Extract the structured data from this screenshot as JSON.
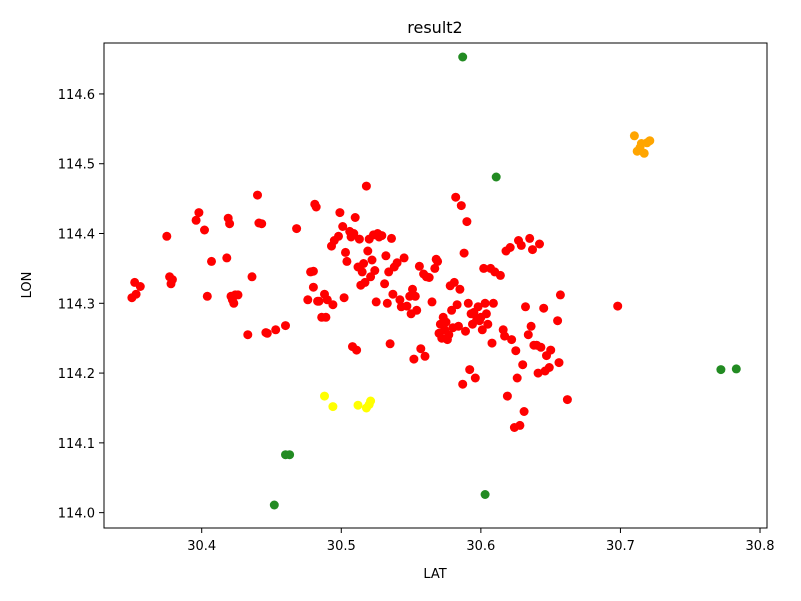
{
  "chart_data": {
    "type": "scatter",
    "title": "result2",
    "xlabel": "LAT",
    "ylabel": "LON",
    "xlim": [
      30.33,
      30.805
    ],
    "ylim": [
      113.978,
      114.673
    ],
    "x_ticks": [
      30.4,
      30.5,
      30.6,
      30.7,
      30.8
    ],
    "x_tick_labels": [
      "30.4",
      "30.5",
      "30.6",
      "30.7",
      "30.8"
    ],
    "y_ticks": [
      114.0,
      114.1,
      114.2,
      114.3,
      114.4,
      114.5,
      114.6
    ],
    "y_tick_labels": [
      "114.0",
      "114.1",
      "114.2",
      "114.3",
      "114.4",
      "114.5",
      "114.6"
    ],
    "grid": false,
    "legend": "none",
    "series": [
      {
        "color": "#ff0000",
        "points": [
          [
            30.35,
            114.308
          ],
          [
            30.353,
            114.313
          ],
          [
            30.352,
            114.33
          ],
          [
            30.356,
            114.324
          ],
          [
            30.375,
            114.396
          ],
          [
            30.377,
            114.338
          ],
          [
            30.379,
            114.334
          ],
          [
            30.378,
            114.328
          ],
          [
            30.396,
            114.419
          ],
          [
            30.398,
            114.43
          ],
          [
            30.402,
            114.405
          ],
          [
            30.404,
            114.31
          ],
          [
            30.407,
            114.36
          ],
          [
            30.418,
            114.365
          ],
          [
            30.419,
            114.422
          ],
          [
            30.42,
            114.414
          ],
          [
            30.421,
            114.31
          ],
          [
            30.422,
            114.305
          ],
          [
            30.424,
            114.312
          ],
          [
            30.423,
            114.3
          ],
          [
            30.426,
            114.312
          ],
          [
            30.433,
            114.255
          ],
          [
            30.436,
            114.338
          ],
          [
            30.44,
            114.455
          ],
          [
            30.441,
            114.415
          ],
          [
            30.443,
            114.414
          ],
          [
            30.446,
            114.258
          ],
          [
            30.447,
            114.257
          ],
          [
            30.453,
            114.262
          ],
          [
            30.46,
            114.268
          ],
          [
            30.468,
            114.407
          ],
          [
            30.476,
            114.305
          ],
          [
            30.478,
            114.345
          ],
          [
            30.48,
            114.346
          ],
          [
            30.48,
            114.323
          ],
          [
            30.481,
            114.442
          ],
          [
            30.482,
            114.438
          ],
          [
            30.483,
            114.303
          ],
          [
            30.484,
            114.303
          ],
          [
            30.486,
            114.28
          ],
          [
            30.488,
            114.313
          ],
          [
            30.489,
            114.28
          ],
          [
            30.49,
            114.305
          ],
          [
            30.493,
            114.382
          ],
          [
            30.494,
            114.298
          ],
          [
            30.495,
            114.39
          ],
          [
            30.498,
            114.396
          ],
          [
            30.499,
            114.43
          ],
          [
            30.501,
            114.41
          ],
          [
            30.502,
            114.308
          ],
          [
            30.503,
            114.373
          ],
          [
            30.504,
            114.36
          ],
          [
            30.506,
            114.403
          ],
          [
            30.507,
            114.395
          ],
          [
            30.508,
            114.238
          ],
          [
            30.509,
            114.4
          ],
          [
            30.51,
            114.423
          ],
          [
            30.511,
            114.233
          ],
          [
            30.512,
            114.352
          ],
          [
            30.513,
            114.392
          ],
          [
            30.514,
            114.326
          ],
          [
            30.515,
            114.345
          ],
          [
            30.516,
            114.357
          ],
          [
            30.517,
            114.33
          ],
          [
            30.518,
            114.468
          ],
          [
            30.519,
            114.375
          ],
          [
            30.52,
            114.392
          ],
          [
            30.521,
            114.338
          ],
          [
            30.522,
            114.362
          ],
          [
            30.523,
            114.398
          ],
          [
            30.524,
            114.347
          ],
          [
            30.525,
            114.302
          ],
          [
            30.526,
            114.4
          ],
          [
            30.527,
            114.395
          ],
          [
            30.529,
            114.397
          ],
          [
            30.531,
            114.328
          ],
          [
            30.532,
            114.368
          ],
          [
            30.533,
            114.3
          ],
          [
            30.534,
            114.345
          ],
          [
            30.535,
            114.242
          ],
          [
            30.536,
            114.393
          ],
          [
            30.537,
            114.313
          ],
          [
            30.538,
            114.352
          ],
          [
            30.54,
            114.358
          ],
          [
            30.542,
            114.305
          ],
          [
            30.543,
            114.295
          ],
          [
            30.545,
            114.365
          ],
          [
            30.547,
            114.296
          ],
          [
            30.549,
            114.31
          ],
          [
            30.55,
            114.285
          ],
          [
            30.551,
            114.32
          ],
          [
            30.552,
            114.22
          ],
          [
            30.553,
            114.31
          ],
          [
            30.554,
            114.29
          ],
          [
            30.556,
            114.353
          ],
          [
            30.557,
            114.235
          ],
          [
            30.559,
            114.342
          ],
          [
            30.56,
            114.224
          ],
          [
            30.561,
            114.338
          ],
          [
            30.563,
            114.337
          ],
          [
            30.565,
            114.302
          ],
          [
            30.567,
            114.35
          ],
          [
            30.568,
            114.363
          ],
          [
            30.569,
            114.36
          ],
          [
            30.57,
            114.257
          ],
          [
            30.571,
            114.27
          ],
          [
            30.572,
            114.25
          ],
          [
            30.573,
            114.28
          ],
          [
            30.574,
            114.262
          ],
          [
            30.575,
            114.273
          ],
          [
            30.576,
            114.248
          ],
          [
            30.577,
            114.255
          ],
          [
            30.578,
            114.325
          ],
          [
            30.579,
            114.29
          ],
          [
            30.58,
            114.265
          ],
          [
            30.581,
            114.33
          ],
          [
            30.582,
            114.452
          ],
          [
            30.583,
            114.298
          ],
          [
            30.584,
            114.267
          ],
          [
            30.585,
            114.32
          ],
          [
            30.586,
            114.44
          ],
          [
            30.587,
            114.184
          ],
          [
            30.588,
            114.372
          ],
          [
            30.589,
            114.26
          ],
          [
            30.59,
            114.417
          ],
          [
            30.591,
            114.3
          ],
          [
            30.592,
            114.205
          ],
          [
            30.593,
            114.285
          ],
          [
            30.594,
            114.27
          ],
          [
            30.595,
            114.287
          ],
          [
            30.596,
            114.193
          ],
          [
            30.597,
            114.276
          ],
          [
            30.598,
            114.295
          ],
          [
            30.599,
            114.275
          ],
          [
            30.6,
            114.28
          ],
          [
            30.601,
            114.262
          ],
          [
            30.602,
            114.35
          ],
          [
            30.603,
            114.3
          ],
          [
            30.604,
            114.285
          ],
          [
            30.605,
            114.27
          ],
          [
            30.607,
            114.35
          ],
          [
            30.608,
            114.243
          ],
          [
            30.609,
            114.3
          ],
          [
            30.61,
            114.345
          ],
          [
            30.614,
            114.34
          ],
          [
            30.616,
            114.262
          ],
          [
            30.617,
            114.253
          ],
          [
            30.618,
            114.375
          ],
          [
            30.619,
            114.167
          ],
          [
            30.621,
            114.38
          ],
          [
            30.622,
            114.248
          ],
          [
            30.624,
            114.122
          ],
          [
            30.625,
            114.232
          ],
          [
            30.626,
            114.193
          ],
          [
            30.627,
            114.39
          ],
          [
            30.628,
            114.125
          ],
          [
            30.629,
            114.383
          ],
          [
            30.63,
            114.212
          ],
          [
            30.631,
            114.145
          ],
          [
            30.632,
            114.295
          ],
          [
            30.634,
            114.255
          ],
          [
            30.635,
            114.393
          ],
          [
            30.636,
            114.267
          ],
          [
            30.637,
            114.377
          ],
          [
            30.638,
            114.24
          ],
          [
            30.64,
            114.24
          ],
          [
            30.641,
            114.2
          ],
          [
            30.642,
            114.385
          ],
          [
            30.643,
            114.237
          ],
          [
            30.645,
            114.293
          ],
          [
            30.646,
            114.203
          ],
          [
            30.647,
            114.225
          ],
          [
            30.649,
            114.208
          ],
          [
            30.65,
            114.233
          ],
          [
            30.655,
            114.275
          ],
          [
            30.656,
            114.215
          ],
          [
            30.657,
            114.312
          ],
          [
            30.662,
            114.162
          ],
          [
            30.698,
            114.296
          ]
        ]
      },
      {
        "color": "#ffff00",
        "points": [
          [
            30.488,
            114.167
          ],
          [
            30.494,
            114.152
          ],
          [
            30.512,
            114.154
          ],
          [
            30.518,
            114.15
          ],
          [
            30.52,
            114.155
          ],
          [
            30.521,
            114.16
          ]
        ]
      },
      {
        "color": "#ffa500",
        "points": [
          [
            30.71,
            114.54
          ],
          [
            30.712,
            114.518
          ],
          [
            30.714,
            114.523
          ],
          [
            30.715,
            114.529
          ],
          [
            30.717,
            114.515
          ],
          [
            30.719,
            114.53
          ],
          [
            30.721,
            114.533
          ]
        ]
      },
      {
        "color": "#228b22",
        "points": [
          [
            30.587,
            114.653
          ],
          [
            30.611,
            114.481
          ],
          [
            30.46,
            114.083
          ],
          [
            30.463,
            114.083
          ],
          [
            30.452,
            114.011
          ],
          [
            30.603,
            114.026
          ],
          [
            30.772,
            114.205
          ],
          [
            30.783,
            114.206
          ]
        ]
      }
    ]
  }
}
